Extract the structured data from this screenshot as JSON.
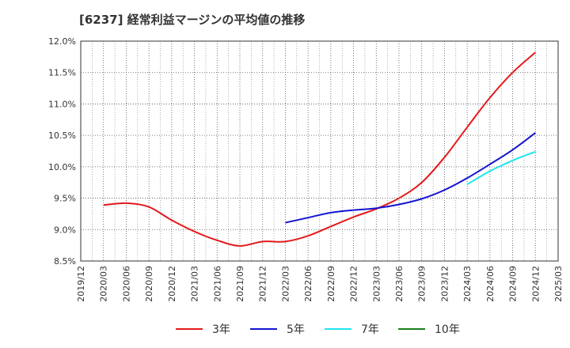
{
  "title": "[6237]  経常利益マージンの平均値の推移",
  "chart_data": {
    "type": "line",
    "title": "[6237]  経常利益マージンの平均値の推移",
    "xlabel": "",
    "ylabel": "",
    "ylim": [
      8.5,
      12.0
    ],
    "y_ticks": [
      "8.5%",
      "9.0%",
      "9.5%",
      "10.0%",
      "10.5%",
      "11.0%",
      "11.5%",
      "12.0%"
    ],
    "x_ticks": [
      "2019/12",
      "2020/03",
      "2020/06",
      "2020/09",
      "2020/12",
      "2021/03",
      "2021/06",
      "2021/09",
      "2021/12",
      "2022/03",
      "2022/06",
      "2022/09",
      "2022/12",
      "2023/03",
      "2023/06",
      "2023/09",
      "2023/12",
      "2024/03",
      "2024/06",
      "2024/09",
      "2024/12",
      "2025/03"
    ],
    "grid": true,
    "legend_position": "bottom",
    "series": [
      {
        "name": "3年",
        "color": "#e31a1c",
        "x": [
          "2020/03",
          "2020/06",
          "2020/09",
          "2020/12",
          "2021/03",
          "2021/06",
          "2021/09",
          "2021/12",
          "2022/03",
          "2022/06",
          "2022/09",
          "2022/12",
          "2023/03",
          "2023/06",
          "2023/09",
          "2023/12",
          "2024/03",
          "2024/06",
          "2024/09",
          "2024/12"
        ],
        "values": [
          9.39,
          9.42,
          9.36,
          9.15,
          8.97,
          8.83,
          8.74,
          8.81,
          8.81,
          8.9,
          9.05,
          9.2,
          9.33,
          9.5,
          9.75,
          10.15,
          10.63,
          11.1,
          11.5,
          11.82
        ]
      },
      {
        "name": "5年",
        "color": "#1414d2",
        "x": [
          "2022/03",
          "2022/06",
          "2022/09",
          "2022/12",
          "2023/03",
          "2023/06",
          "2023/09",
          "2023/12",
          "2024/03",
          "2024/06",
          "2024/09",
          "2024/12"
        ],
        "values": [
          9.11,
          9.19,
          9.27,
          9.31,
          9.34,
          9.4,
          9.49,
          9.63,
          9.82,
          10.04,
          10.27,
          10.54
        ]
      },
      {
        "name": "7年",
        "color": "#1fe5f0",
        "x": [
          "2024/03",
          "2024/06",
          "2024/09",
          "2024/12"
        ],
        "values": [
          9.72,
          9.93,
          10.1,
          10.24
        ]
      },
      {
        "name": "10年",
        "color": "#1a7f1a",
        "x": [],
        "values": []
      }
    ]
  }
}
